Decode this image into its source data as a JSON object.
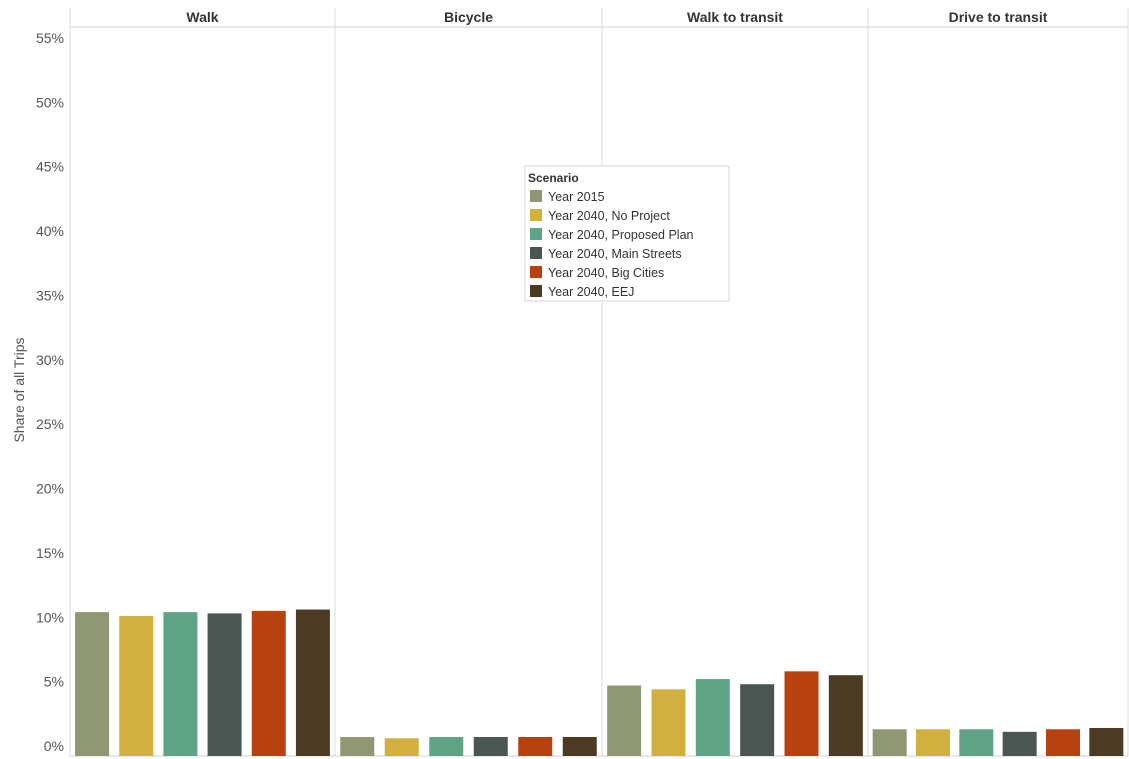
{
  "chart_data": {
    "type": "bar",
    "ylabel": "Share of all Trips",
    "ylim": [
      0,
      55
    ],
    "yticks": [
      "0%",
      "5%",
      "10%",
      "15%",
      "20%",
      "25%",
      "30%",
      "35%",
      "40%",
      "45%",
      "50%",
      "55%"
    ],
    "ytick_values": [
      0,
      5,
      10,
      15,
      20,
      25,
      30,
      35,
      40,
      45,
      50,
      55
    ],
    "grid": false,
    "legend": {
      "title": "Scenario",
      "placement": "inside-center-top"
    },
    "panels": [
      "Walk",
      "Bicycle",
      "Walk to transit",
      "Drive to transit"
    ],
    "series": [
      {
        "name": "Year 2015",
        "color": "#8f9873",
        "values": [
          10.4,
          0.7,
          4.7,
          1.3
        ]
      },
      {
        "name": "Year 2040, No Project",
        "color": "#d2b03f",
        "values": [
          10.1,
          0.6,
          4.4,
          1.3
        ]
      },
      {
        "name": "Year 2040, Proposed Plan",
        "color": "#5fa487",
        "values": [
          10.4,
          0.7,
          5.2,
          1.3
        ]
      },
      {
        "name": "Year 2040, Main Streets",
        "color": "#4a5651",
        "values": [
          10.3,
          0.7,
          4.8,
          1.1
        ]
      },
      {
        "name": "Year 2040, Big Cities",
        "color": "#b8420f",
        "values": [
          10.5,
          0.7,
          5.8,
          1.3
        ]
      },
      {
        "name": "Year 2040, EEJ",
        "color": "#4c3a22",
        "values": [
          10.6,
          0.7,
          5.5,
          1.4
        ]
      }
    ]
  }
}
